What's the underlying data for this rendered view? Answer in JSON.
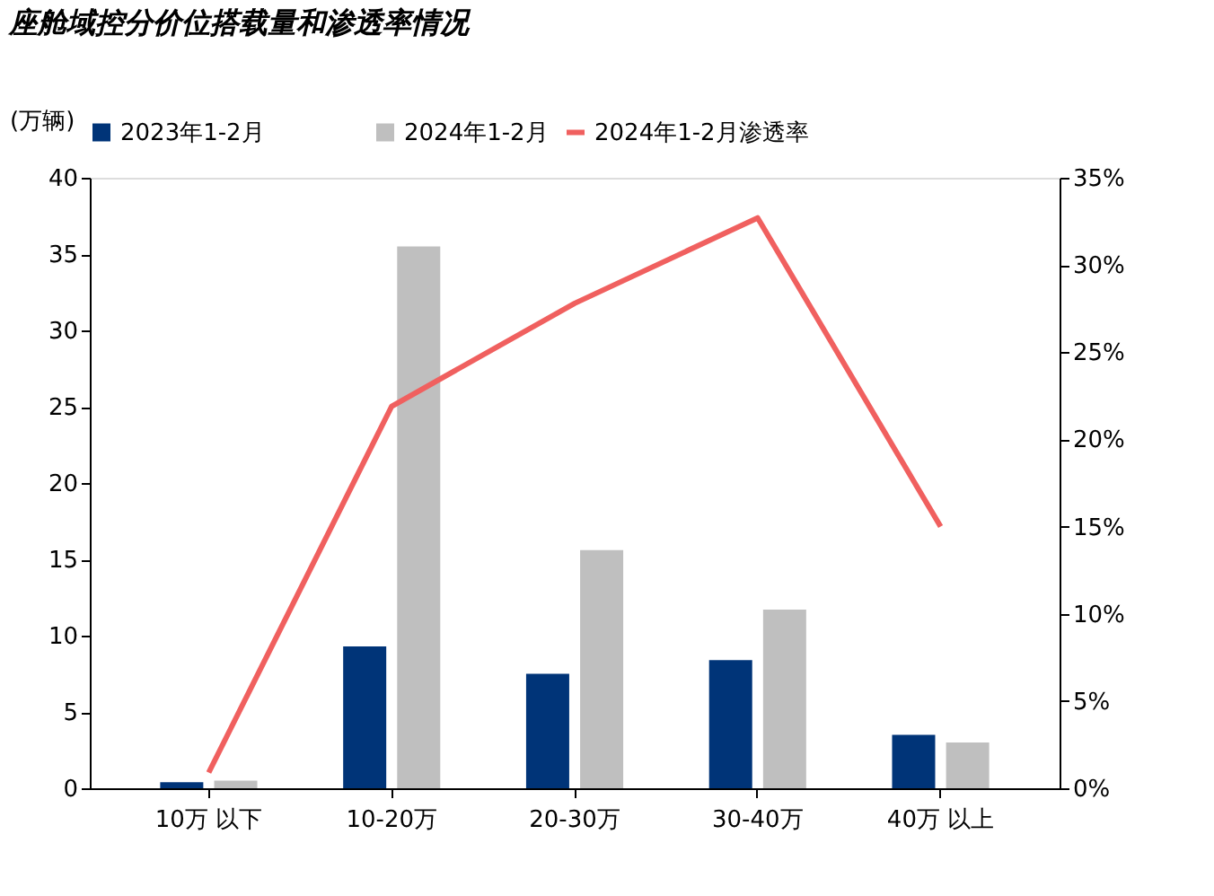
{
  "chart_data": {
    "type": "bar",
    "title": "座舱域控分价位搭载量和渗透率情况",
    "ylabel": "(万辆)",
    "categories": [
      "10万 以下",
      "10-20万",
      "20-30万",
      "30-40万",
      "40万 以上"
    ],
    "series": [
      {
        "name": "2023年1-2月",
        "color": "#003478",
        "values": [
          0.4,
          9.3,
          7.5,
          8.4,
          3.5
        ]
      },
      {
        "name": "2024年1-2月",
        "color": "#bfbfbf",
        "values": [
          0.5,
          35.5,
          15.6,
          11.7,
          3.0
        ]
      },
      {
        "name": "2024年1-2月渗透率",
        "type": "line",
        "axis": "y2",
        "color": "#f0605f",
        "values": [
          0.9,
          21.9,
          27.8,
          32.7,
          15.0
        ]
      }
    ],
    "ylim": [
      0,
      40
    ],
    "yticks": [
      0,
      5,
      10,
      15,
      20,
      25,
      30,
      35,
      40
    ],
    "y2lim": [
      0,
      35
    ],
    "y2ticks": [
      {
        "value": 0,
        "label": "0%"
      },
      {
        "value": 5,
        "label": "5%"
      },
      {
        "value": 10,
        "label": "10%"
      },
      {
        "value": 15,
        "label": "15%"
      },
      {
        "value": 20,
        "label": "20%"
      },
      {
        "value": 25,
        "label": "25%"
      },
      {
        "value": 30,
        "label": "30%"
      },
      {
        "value": 35,
        "label": "35%"
      }
    ],
    "legend": "top",
    "grid": false
  }
}
